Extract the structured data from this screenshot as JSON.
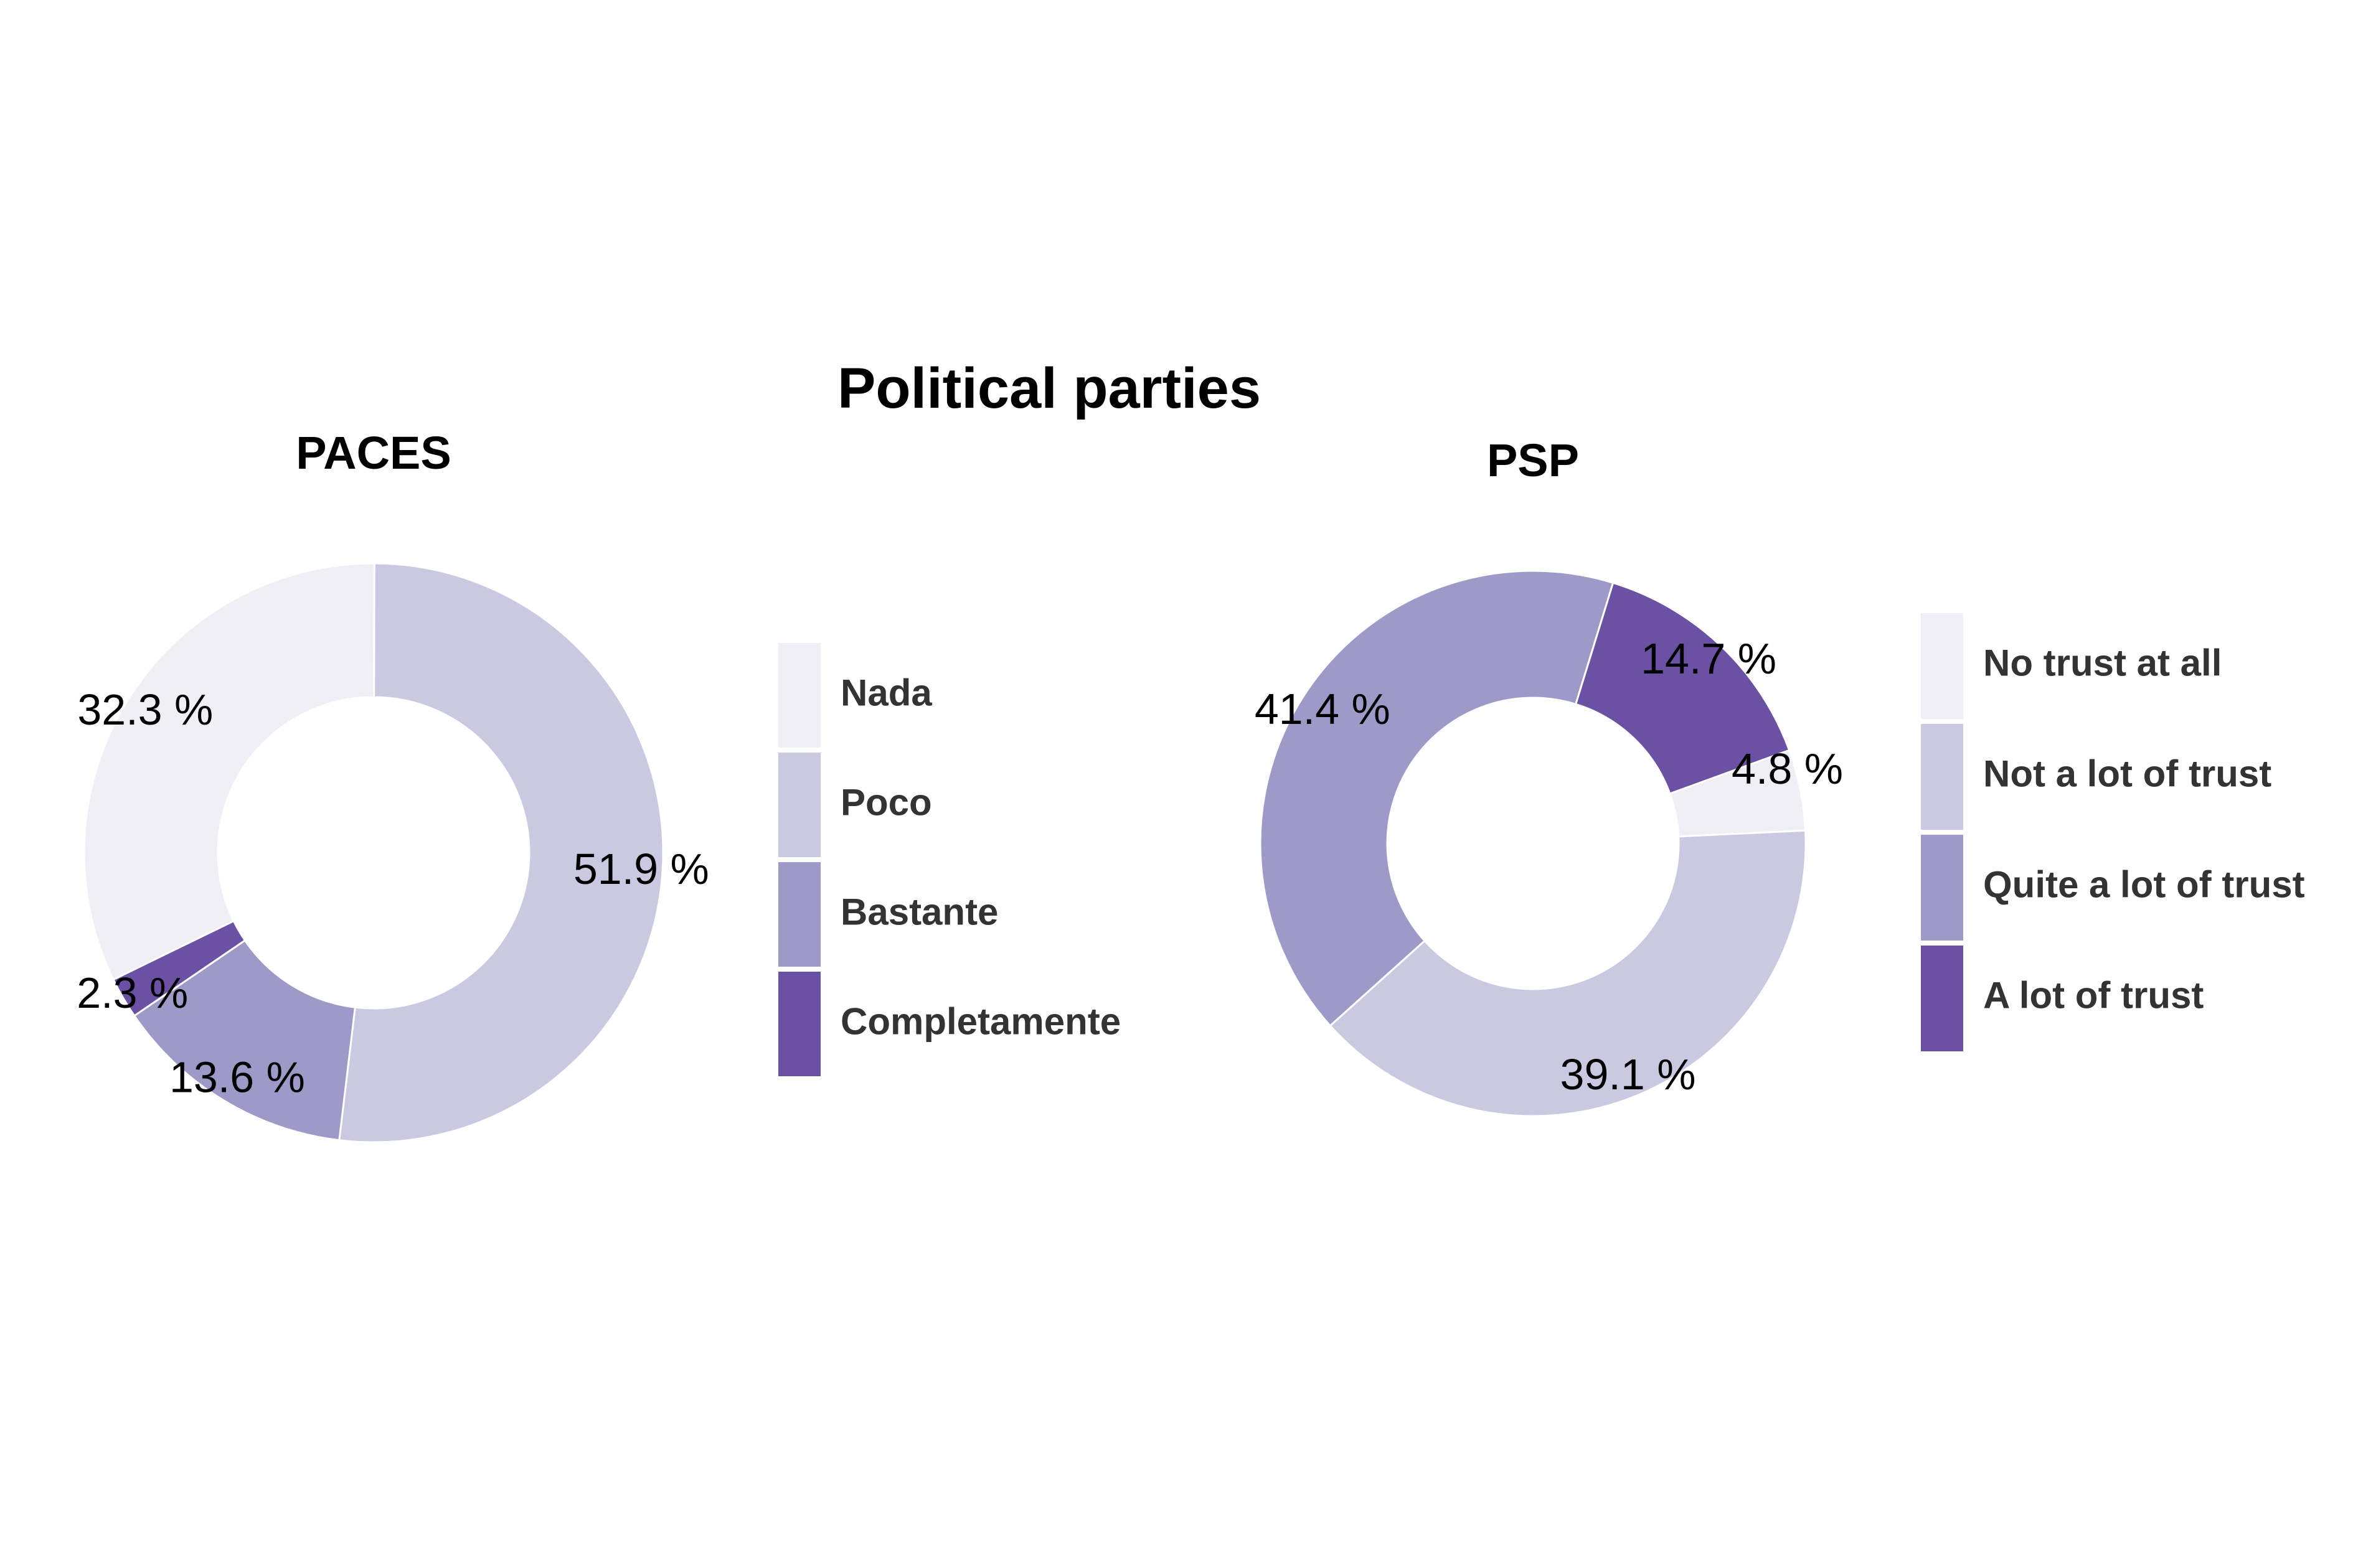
{
  "title": "Political parties",
  "chart_data": [
    {
      "type": "pie",
      "title": "PACES",
      "categories": [
        "Nada",
        "Poco",
        "Bastante",
        "Completamente"
      ],
      "values": [
        32.3,
        51.9,
        13.6,
        2.3
      ],
      "labels": [
        "32.3 %",
        "51.9 %",
        "13.6 %",
        "2.3 %"
      ],
      "colors": [
        "#f0eff6",
        "#cbc9e2",
        "#9e9ac8",
        "#6a51a3"
      ],
      "legend": {
        "position": "right",
        "entries": [
          "Nada",
          "Poco",
          "Bastante",
          "Completamente"
        ]
      }
    },
    {
      "type": "pie",
      "title": "PSP",
      "categories": [
        "No trust at all",
        "Not a lot of trust",
        "Quite a lot of trust",
        "A lot of trust"
      ],
      "values": [
        4.8,
        39.1,
        41.4,
        14.7
      ],
      "labels": [
        "4.8 %",
        "39.1 %",
        "41.4 %",
        "14.7 %"
      ],
      "colors": [
        "#f0eff6",
        "#cbc9e2",
        "#9e9ac8",
        "#6a51a3"
      ],
      "legend": {
        "position": "right",
        "entries": [
          "No trust at all",
          "Not a lot of trust",
          "Quite a lot of trust",
          "A lot of trust"
        ]
      }
    }
  ]
}
